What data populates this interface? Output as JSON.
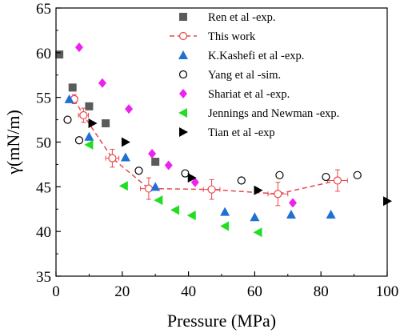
{
  "chart_data": {
    "type": "scatter",
    "xlabel": "Pressure (MPa)",
    "ylabel": "γ(mN/m)",
    "xlim": [
      0,
      100
    ],
    "ylim": [
      35,
      65
    ],
    "x_ticks": [
      0,
      20,
      40,
      60,
      80,
      100
    ],
    "y_ticks": [
      35,
      40,
      45,
      50,
      55,
      60,
      65
    ],
    "grid": false,
    "legend_position": "top-right",
    "series": [
      {
        "name": "Ren et al -exp.",
        "marker": "square",
        "color": "#5b5b5b",
        "points": [
          [
            1,
            59.8
          ],
          [
            5,
            56.1
          ],
          [
            10,
            54.0
          ],
          [
            15,
            52.1
          ],
          [
            30,
            47.8
          ]
        ]
      },
      {
        "name": "This work",
        "marker": "open-circle",
        "line": "dashed",
        "color": "#e8474a",
        "points": [
          [
            5.5,
            54.8
          ],
          [
            8.3,
            53.0
          ],
          [
            17,
            48.2
          ],
          [
            28,
            44.8
          ],
          [
            47,
            44.7
          ],
          [
            67,
            44.2
          ],
          [
            85,
            45.7
          ]
        ],
        "x_err": [
          1.0,
          1.5,
          2.0,
          2.5,
          2.5,
          3.0,
          3.0
        ],
        "y_err": [
          0.5,
          0.8,
          1.0,
          1.2,
          1.1,
          1.3,
          1.2
        ]
      },
      {
        "name": "K.Kashefi et al -exp.",
        "marker": "triangle-up",
        "color": "#1f6fd4",
        "points": [
          [
            4,
            54.8
          ],
          [
            10,
            50.6
          ],
          [
            21,
            48.3
          ],
          [
            30,
            45.0
          ],
          [
            51,
            42.2
          ],
          [
            60,
            41.6
          ],
          [
            71,
            41.9
          ],
          [
            83,
            41.9
          ]
        ]
      },
      {
        "name": "Yang et al -sim.",
        "marker": "open-circle",
        "color": "#000000",
        "points": [
          [
            3.5,
            52.5
          ],
          [
            7,
            50.2
          ],
          [
            25,
            46.8
          ],
          [
            39,
            46.5
          ],
          [
            56,
            45.7
          ],
          [
            67.5,
            46.3
          ],
          [
            81.5,
            46.1
          ],
          [
            91,
            46.3
          ]
        ]
      },
      {
        "name": "Shariat et al -exp.",
        "marker": "diamond",
        "color": "#ee22ee",
        "points": [
          [
            7,
            60.6
          ],
          [
            14,
            56.6
          ],
          [
            22,
            53.7
          ],
          [
            29,
            48.7
          ],
          [
            34,
            47.4
          ],
          [
            42,
            45.5
          ],
          [
            71.5,
            43.2
          ]
        ]
      },
      {
        "name": "Jennings and Newman  -exp.",
        "marker": "triangle-left",
        "color": "#22dd22",
        "points": [
          [
            10,
            49.7
          ],
          [
            20.5,
            45.1
          ],
          [
            31,
            43.5
          ],
          [
            36,
            42.4
          ],
          [
            41,
            41.8
          ],
          [
            51,
            40.6
          ],
          [
            61,
            39.9
          ]
        ]
      },
      {
        "name": "Tian et al -exp",
        "marker": "triangle-right",
        "color": "#000000",
        "points": [
          [
            11,
            52.1
          ],
          [
            21,
            50.0
          ],
          [
            41,
            46.0
          ],
          [
            61,
            44.6
          ],
          [
            100,
            43.4
          ]
        ]
      }
    ]
  }
}
